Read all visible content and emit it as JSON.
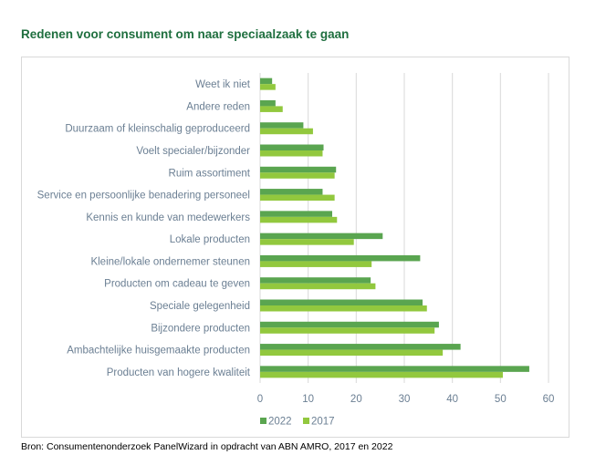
{
  "title": "Redenen voor consument om naar speciaalzaak te gaan",
  "source": "Bron: Consumentenonderzoek PanelWizard in opdracht van ABN AMRO, 2017 en 2022",
  "colors": {
    "2022": "#5aa550",
    "2017": "#92c83e",
    "grid": "#d9d9d9"
  },
  "chart_data": {
    "type": "bar",
    "orientation": "horizontal",
    "categories": [
      "Weet ik niet",
      "Andere reden",
      "Duurzaam of kleinschalig geproduceerd",
      "Voelt specialer/bijzonder",
      "Ruim assortiment",
      "Service en persoonlijke benadering personeel",
      "Kennis en kunde van medewerkers",
      "Lokale producten",
      "Kleine/lokale ondernemer steunen",
      "Producten om cadeau te geven",
      "Speciale gelegenheid",
      "Bijzondere producten",
      "Ambachtelijke huisgemaakte producten",
      "Producten van hogere kwaliteit"
    ],
    "series": [
      {
        "name": "2022",
        "values": [
          2.5,
          3.2,
          9,
          13.2,
          15.8,
          13,
          15,
          25.5,
          33.3,
          23,
          33.8,
          37.2,
          41.7,
          56
        ]
      },
      {
        "name": "2017",
        "values": [
          3.2,
          4.7,
          11,
          13,
          15.5,
          15.5,
          16,
          19.5,
          23.2,
          24,
          34.7,
          36.3,
          38,
          50.5
        ]
      }
    ],
    "xlim": [
      0,
      60
    ],
    "xticks": [
      0,
      10,
      20,
      30,
      40,
      50,
      60
    ],
    "grid": true,
    "legend": "bottom-left"
  }
}
